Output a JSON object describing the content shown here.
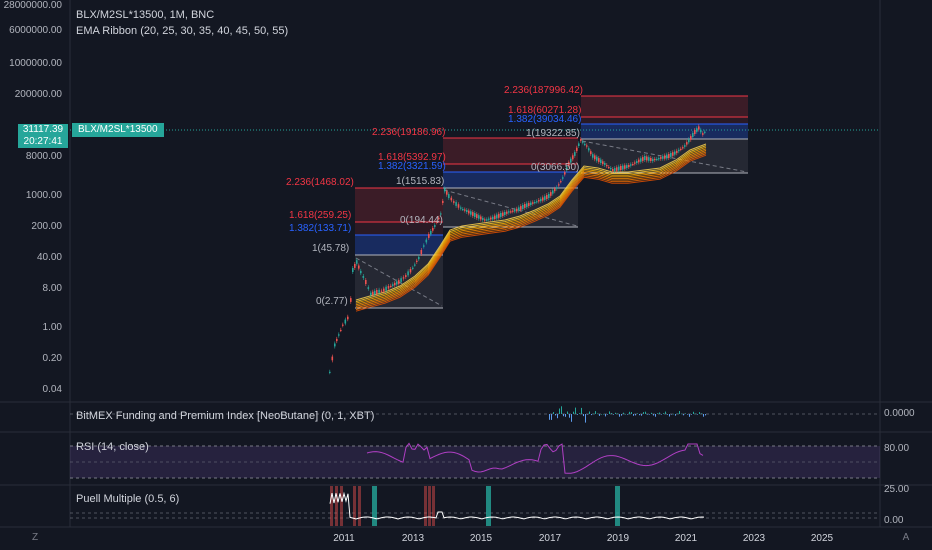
{
  "header": {
    "symbol_line": "BLX/M2SL*13500, 1M, BNC",
    "indicator_line": "EMA Ribbon (20, 25, 30, 35, 40, 45, 50, 55)"
  },
  "price_tag": {
    "price": "31117.39",
    "time": "20:27:41",
    "symbol": "BLX/M2SL*13500"
  },
  "y_axis_labels": [
    "28000000.00",
    "6000000.00",
    "1000000.00",
    "200000.00",
    "8000.00",
    "1000.00",
    "200.00",
    "40.00",
    "8.00",
    "1.00",
    "0.20",
    "0.04"
  ],
  "x_axis_labels": [
    "2011",
    "2013",
    "2015",
    "2017",
    "2019",
    "2021",
    "2023",
    "2025"
  ],
  "fib_labels": [
    {
      "text": "2.236(1468.02)",
      "color": "#f23645"
    },
    {
      "text": "1.618(259.25)",
      "color": "#f23645"
    },
    {
      "text": "1.382(133.71)",
      "color": "#2962ff"
    },
    {
      "text": "1(45.78)",
      "color": "#b2b5be"
    },
    {
      "text": "0(2.77)",
      "color": "#b2b5be"
    },
    {
      "text": "2.236(19186.96)",
      "color": "#f23645"
    },
    {
      "text": "1.618(5392.97)",
      "color": "#f23645"
    },
    {
      "text": "1.382(3321.59)",
      "color": "#2962ff"
    },
    {
      "text": "1(1515.83)",
      "color": "#b2b5be"
    },
    {
      "text": "0(194.44)",
      "color": "#b2b5be"
    },
    {
      "text": "2.236(187996.42)",
      "color": "#f23645"
    },
    {
      "text": "1.618(60271.28)",
      "color": "#f23645"
    },
    {
      "text": "1.382(39034.46)",
      "color": "#2962ff"
    },
    {
      "text": "1(19322.85)",
      "color": "#b2b5be"
    },
    {
      "text": "0(3066.50)",
      "color": "#b2b5be"
    }
  ],
  "panes": [
    {
      "title": "BitMEX Funding and Premium Index [NeoButane] (0, 1, XBT)",
      "labels": [
        "0.0000"
      ]
    },
    {
      "title": "RSI (14, close)",
      "labels": [
        "80.00"
      ]
    },
    {
      "title": "Puell Multiple (0.5, 6)",
      "labels": [
        "25.00",
        "0.00"
      ]
    }
  ],
  "corner_buttons": {
    "left": "Z",
    "right": "A"
  },
  "colors": {
    "background": "#131722",
    "up": "#26a69a",
    "down": "#ef5350",
    "fib_red": "#f23645",
    "fib_blue": "#2962ff",
    "rsi": "#9c27b0",
    "ribbon": "#f7a21b"
  }
}
